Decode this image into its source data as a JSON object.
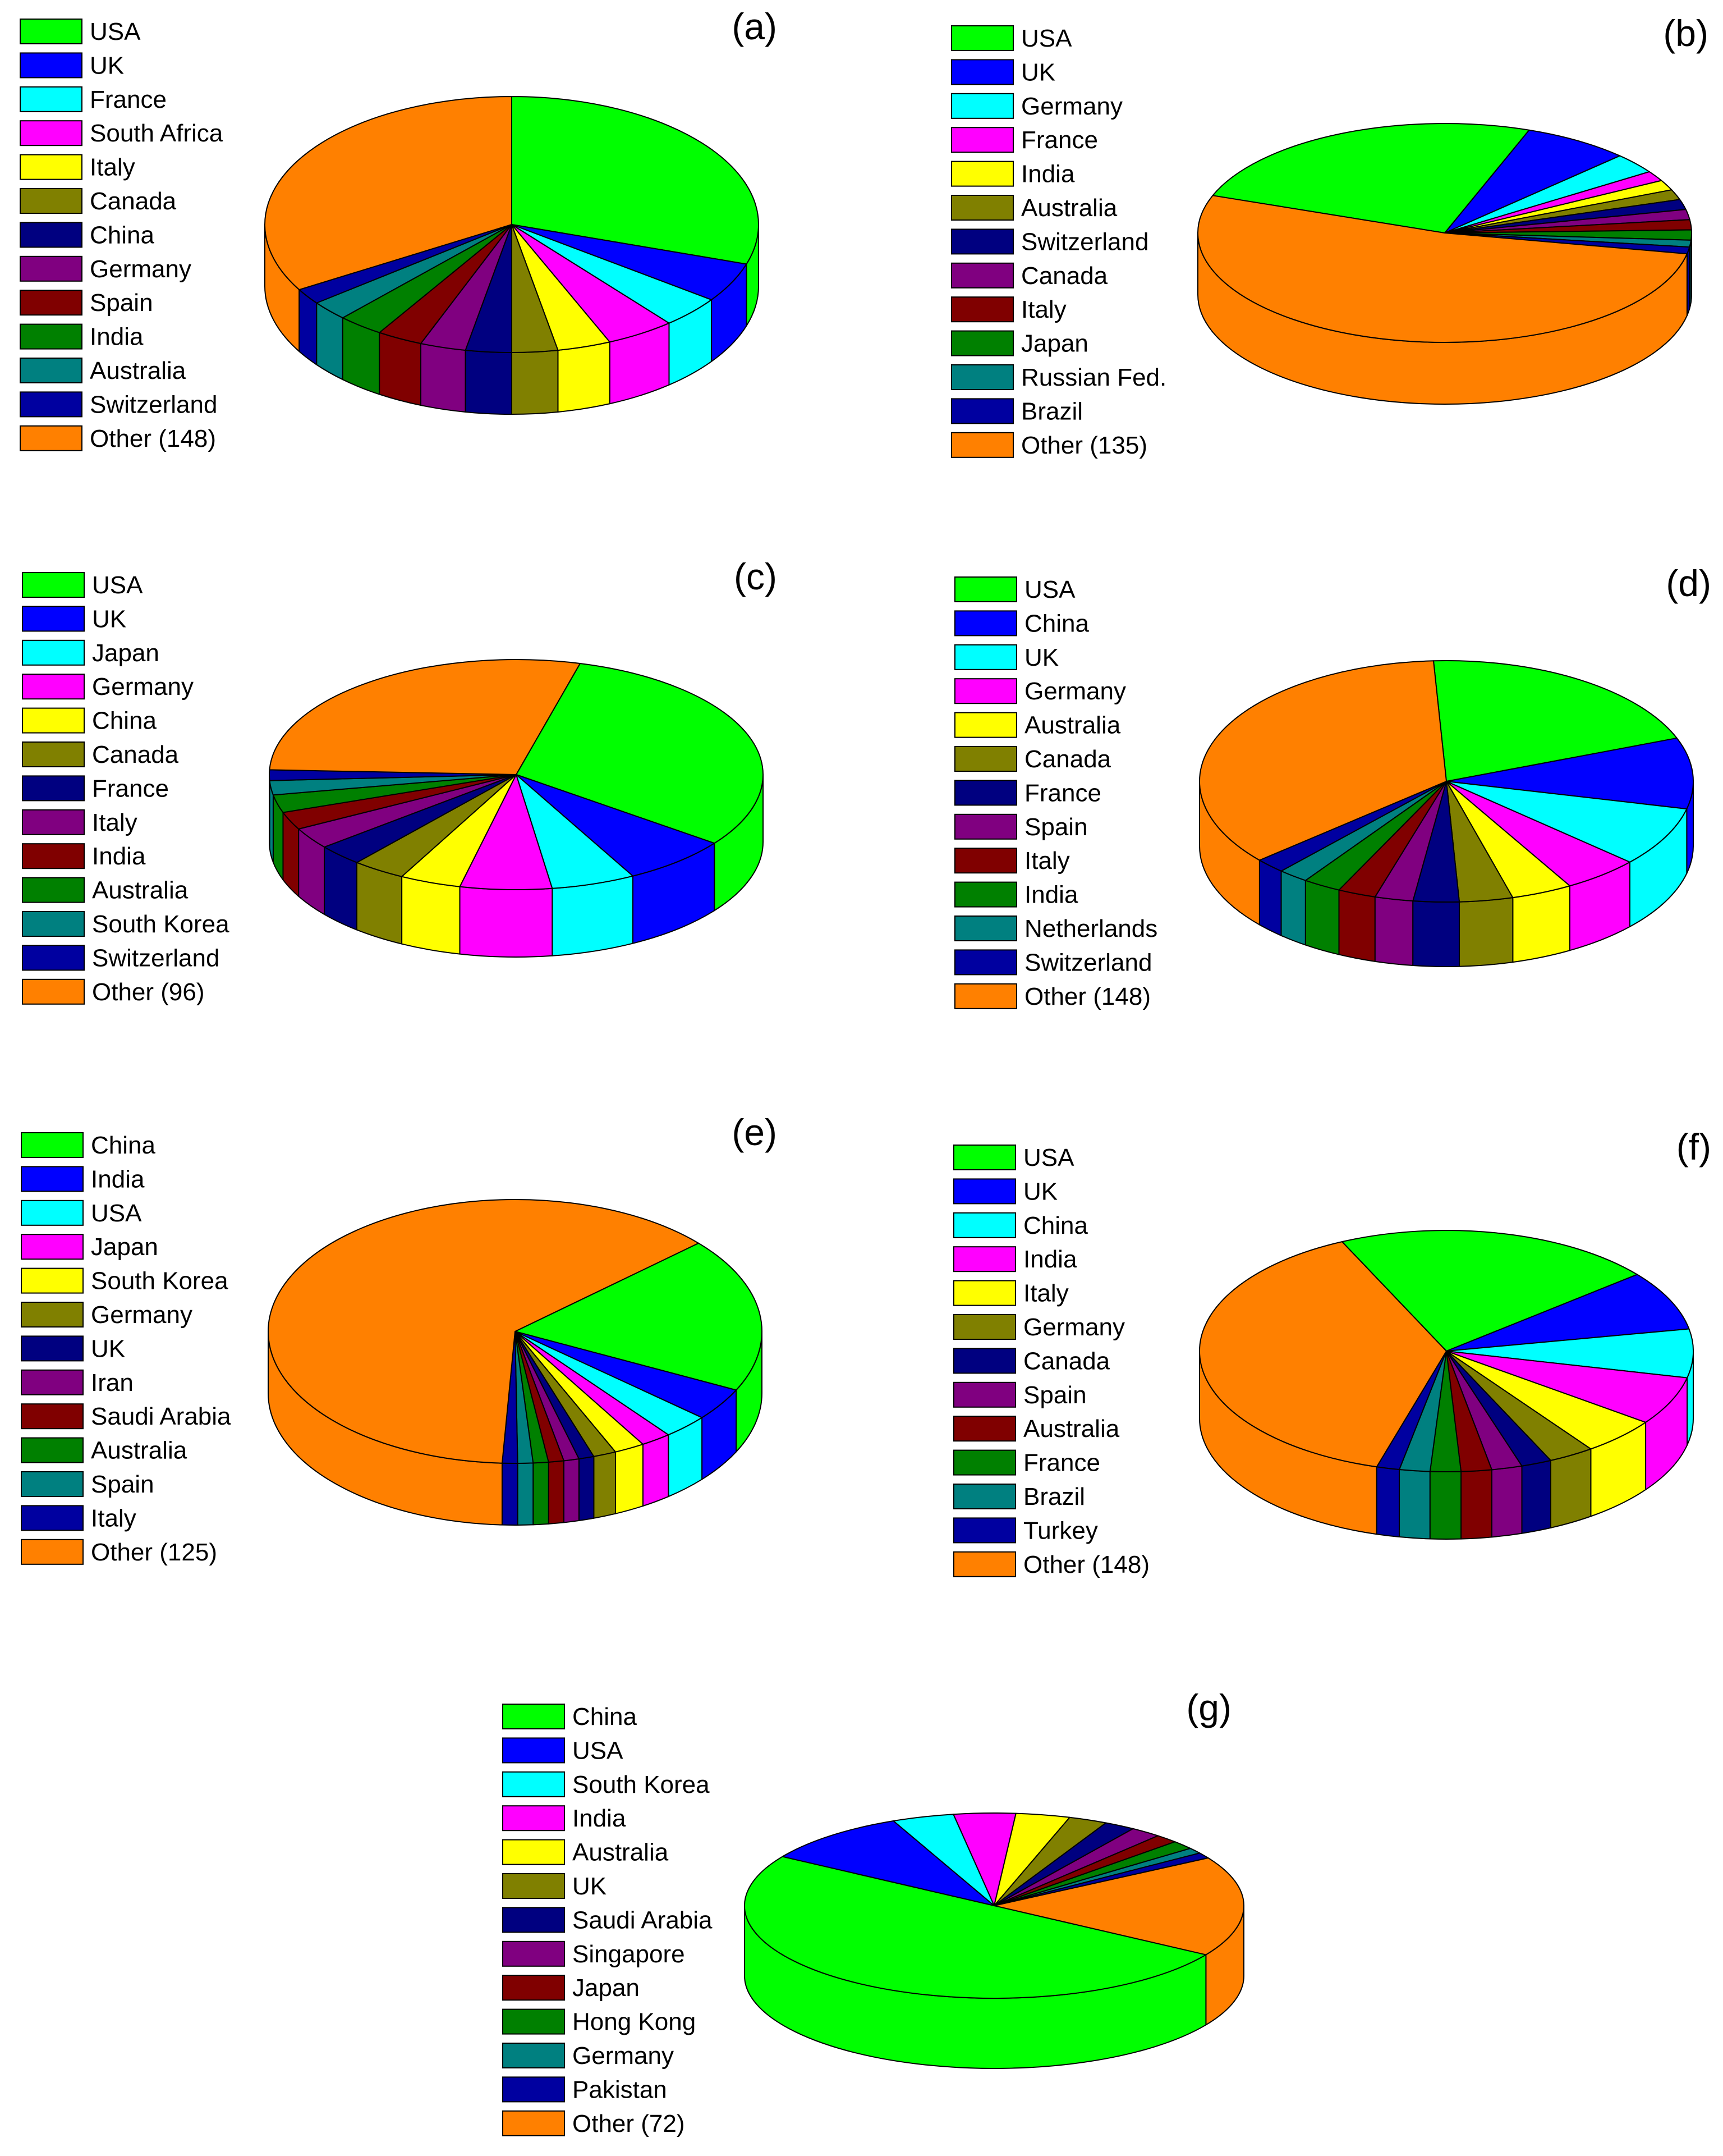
{
  "colors": {
    "green": "#00ff00",
    "blue": "#0000ff",
    "cyan": "#00ffff",
    "magenta": "#ff00ff",
    "yellow": "#ffff00",
    "olive": "#808000",
    "navy": "#000080",
    "purple": "#800080",
    "maroon": "#800000",
    "darkgreen": "#008000",
    "teal": "#008080",
    "darkblue": "#0000a0",
    "orange": "#ff8000"
  },
  "chart_data": [
    {
      "panel": "(a)",
      "type": "pie",
      "labels": [
        "USA",
        "UK",
        "France",
        "South Africa",
        "Italy",
        "Canada",
        "China",
        "Germany",
        "Spain",
        "India",
        "Australia",
        "Switzerland",
        "Other (148)"
      ],
      "values": [
        30.0,
        5.0,
        4.0,
        4.5,
        3.5,
        3.0,
        3.0,
        3.0,
        3.0,
        3.0,
        2.5,
        2.0,
        33.5
      ],
      "units": "percent (estimated)"
    },
    {
      "panel": "(b)",
      "type": "pie",
      "labels": [
        "USA",
        "UK",
        "Germany",
        "France",
        "India",
        "Australia",
        "Switzerland",
        "Canada",
        "Italy",
        "Japan",
        "Russian Fed.",
        "Brazil",
        "Other (135)"
      ],
      "values": [
        25.0,
        7.0,
        3.0,
        1.5,
        1.5,
        1.5,
        1.5,
        1.5,
        1.5,
        1.5,
        1.0,
        1.0,
        52.5
      ],
      "units": "percent (estimated)"
    },
    {
      "panel": "(c)",
      "type": "pie",
      "labels": [
        "USA",
        "UK",
        "Japan",
        "Germany",
        "China",
        "Canada",
        "France",
        "Italy",
        "India",
        "Australia",
        "South Korea",
        "Switzerland",
        "Other (96)"
      ],
      "values": [
        31.0,
        7.0,
        5.5,
        6.0,
        4.0,
        3.5,
        3.0,
        3.0,
        2.5,
        2.5,
        2.0,
        1.5,
        28.5
      ],
      "units": "percent (estimated)"
    },
    {
      "panel": "(d)",
      "type": "pie",
      "labels": [
        "USA",
        "China",
        "UK",
        "Germany",
        "Australia",
        "Canada",
        "France",
        "Spain",
        "Italy",
        "India",
        "Netherlands",
        "Switzerland",
        "Other (148)"
      ],
      "values": [
        20.0,
        9.5,
        8.0,
        5.0,
        4.0,
        3.5,
        3.0,
        2.5,
        2.5,
        2.5,
        2.0,
        2.0,
        35.5
      ],
      "units": "percent (estimated)"
    },
    {
      "panel": "(e)",
      "type": "pie",
      "labels": [
        "China",
        "India",
        "USA",
        "Japan",
        "South Korea",
        "Germany",
        "UK",
        "Iran",
        "Saudi Arabia",
        "Australia",
        "Spain",
        "Italy",
        "Other (125)"
      ],
      "values": [
        19.0,
        4.0,
        3.0,
        2.0,
        2.0,
        1.5,
        1.0,
        1.0,
        1.0,
        1.0,
        1.0,
        1.0,
        62.5
      ],
      "units": "percent (estimated)"
    },
    {
      "panel": "(f)",
      "type": "pie",
      "labels": [
        "USA",
        "UK",
        "China",
        "India",
        "Italy",
        "Germany",
        "Canada",
        "Spain",
        "Australia",
        "France",
        "Brazil",
        "Turkey",
        "Other (148)"
      ],
      "values": [
        21.0,
        8.0,
        6.5,
        6.5,
        5.0,
        3.0,
        2.0,
        2.0,
        2.0,
        2.0,
        2.0,
        1.5,
        38.5
      ],
      "units": "percent (estimated)"
    },
    {
      "panel": "(g)",
      "type": "pie",
      "labels": [
        "China",
        "USA",
        "South Korea",
        "India",
        "Australia",
        "UK",
        "Saudi Arabia",
        "Singapore",
        "Japan",
        "Hong Kong",
        "Germany",
        "Pakistan",
        "Other (72)"
      ],
      "values": [
        50.0,
        9.5,
        4.0,
        4.0,
        3.5,
        2.5,
        2.0,
        2.0,
        1.5,
        1.5,
        1.0,
        1.0,
        17.5
      ],
      "units": "percent (estimated)"
    }
  ]
}
